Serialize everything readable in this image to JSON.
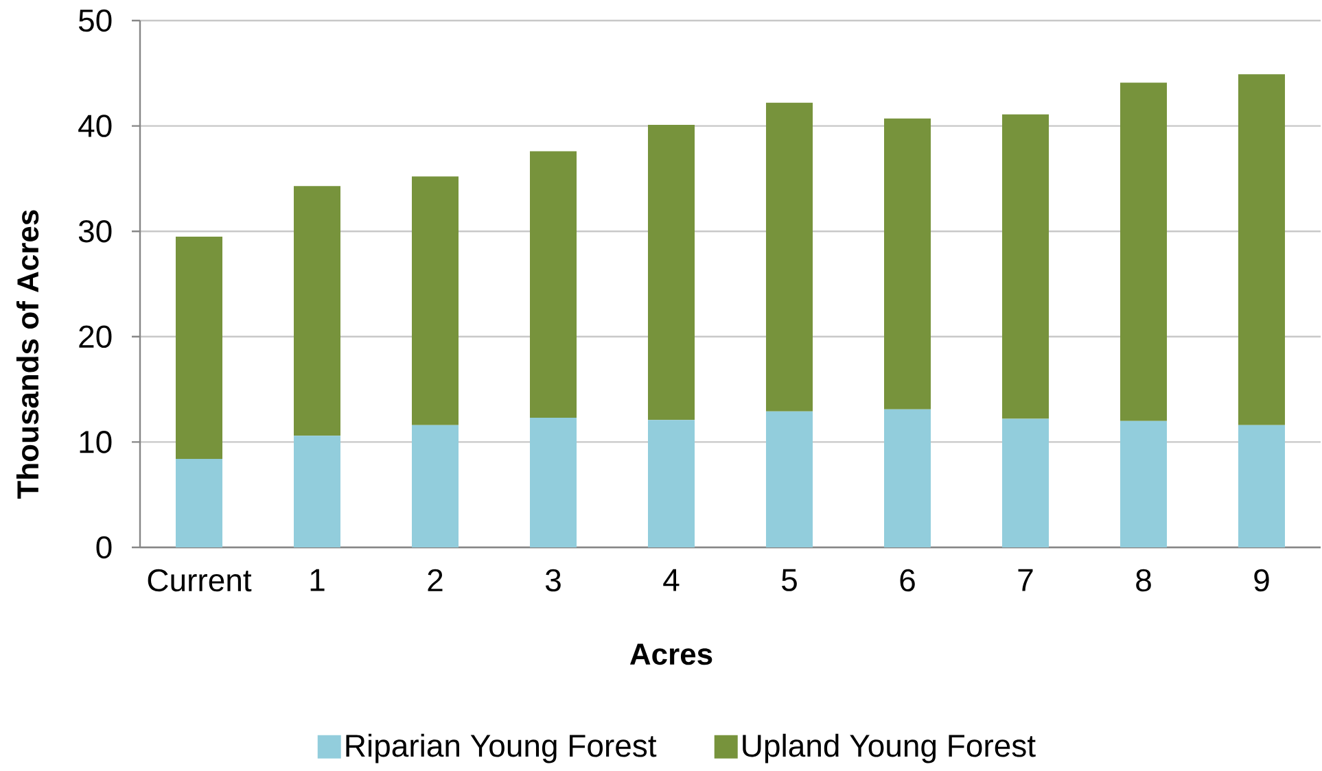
{
  "chart_data": {
    "type": "bar",
    "stacked": true,
    "xlabel": "Acres",
    "ylabel": "Thousands of Acres",
    "categories": [
      "Current",
      "1",
      "2",
      "3",
      "4",
      "5",
      "6",
      "7",
      "8",
      "9"
    ],
    "series": [
      {
        "name": "Riparian Young Forest",
        "color": "#92cddc",
        "values": [
          8.4,
          10.6,
          11.6,
          12.3,
          12.1,
          12.9,
          13.1,
          12.2,
          12.0,
          11.6
        ]
      },
      {
        "name": "Upland Young Forest",
        "color": "#77933c",
        "values": [
          21.1,
          23.7,
          23.6,
          25.3,
          28.0,
          29.3,
          27.6,
          28.9,
          32.1,
          33.3
        ]
      }
    ],
    "ylim": [
      0,
      50
    ],
    "yticks": [
      0,
      10,
      20,
      30,
      40,
      50
    ],
    "grid": "y",
    "legend": "bottom"
  }
}
